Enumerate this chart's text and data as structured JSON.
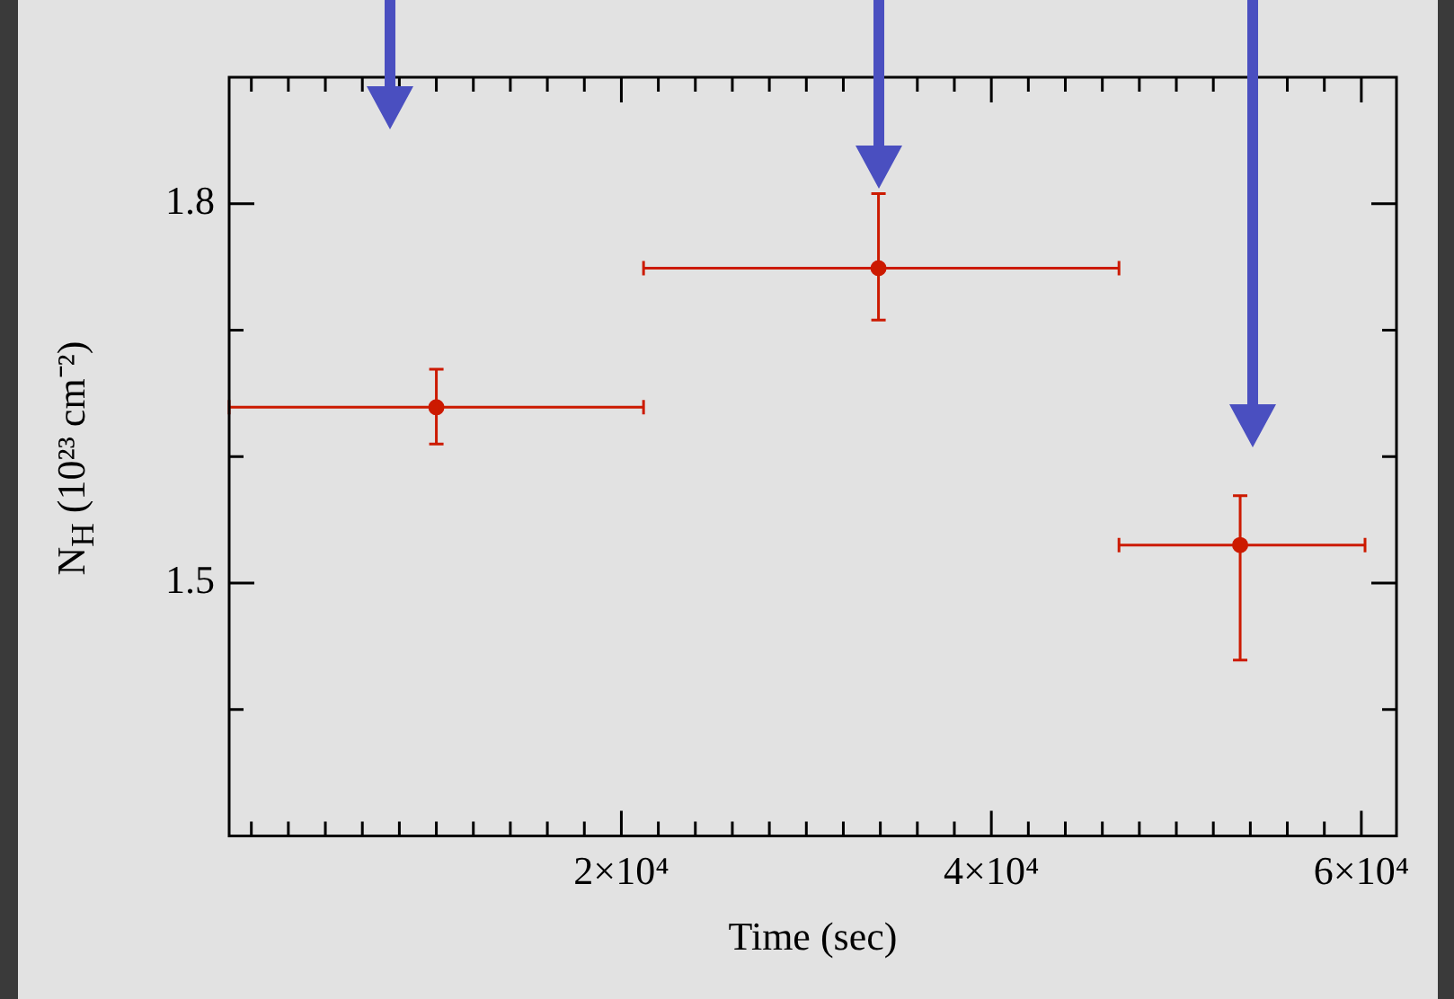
{
  "chart_data": {
    "type": "scatter",
    "xlabel": "Time (sec)",
    "ylabel": "N$_{H}$ (10²³ cm⁻²)",
    "x": [
      10000,
      33900,
      53450
    ],
    "values": [
      1.639,
      1.749,
      1.53
    ],
    "errors": [
      [
        1.61,
        1.669
      ],
      [
        1.708,
        1.808
      ],
      [
        1.439,
        1.569
      ]
    ],
    "xerrors": [
      [
        -1200,
        21200
      ],
      [
        21200,
        46900
      ],
      [
        46900,
        60200
      ]
    ],
    "color": "#cc1a00",
    "marker": "circle",
    "grid": false,
    "legend": false,
    "xlim": [
      -1200,
      61900
    ],
    "xticks": [
      {
        "value": 0,
        "label": null
      },
      {
        "value": 2000,
        "label": null
      },
      {
        "value": 4000,
        "label": null
      },
      {
        "value": 6000,
        "label": null
      },
      {
        "value": 8000,
        "label": null
      },
      {
        "value": 10000,
        "label": null
      },
      {
        "value": 12000,
        "label": null
      },
      {
        "value": 14000,
        "label": null
      },
      {
        "value": 16000,
        "label": null
      },
      {
        "value": 18000,
        "label": null
      },
      {
        "value": 20000,
        "label": "2×10⁴"
      },
      {
        "value": 22000,
        "label": null
      },
      {
        "value": 24000,
        "label": null
      },
      {
        "value": 26000,
        "label": null
      },
      {
        "value": 28000,
        "label": null
      },
      {
        "value": 30000,
        "label": null
      },
      {
        "value": 32000,
        "label": null
      },
      {
        "value": 34000,
        "label": null
      },
      {
        "value": 36000,
        "label": null
      },
      {
        "value": 38000,
        "label": null
      },
      {
        "value": 40000,
        "label": "4×10⁴"
      },
      {
        "value": 42000,
        "label": null
      },
      {
        "value": 44000,
        "label": null
      },
      {
        "value": 46000,
        "label": null
      },
      {
        "value": 48000,
        "label": null
      },
      {
        "value": 50000,
        "label": null
      },
      {
        "value": 52000,
        "label": null
      },
      {
        "value": 54000,
        "label": null
      },
      {
        "value": 56000,
        "label": null
      },
      {
        "value": 58000,
        "label": null
      },
      {
        "value": 60000,
        "label": "6×10⁴"
      }
    ],
    "ylim": [
      1.3,
      1.9
    ],
    "yticks": [
      {
        "value": 1.4,
        "label": null
      },
      1.5,
      {
        "value": 1.6,
        "label": null
      },
      {
        "value": 1.7,
        "label": null
      },
      1.8
    ]
  }
}
